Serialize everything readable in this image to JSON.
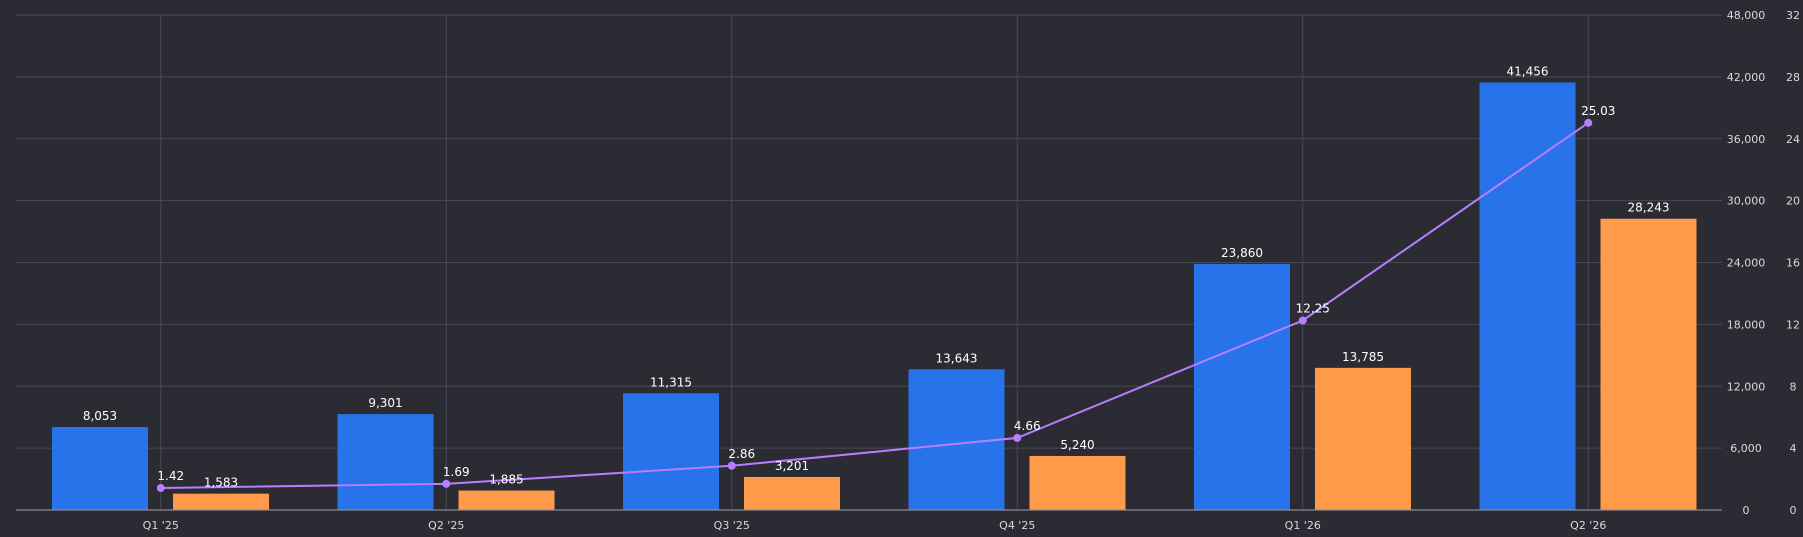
{
  "chart_data": {
    "type": "bar",
    "categories": [
      "Q1 '25",
      "Q2 '25",
      "Q3 '25",
      "Q4 '25",
      "Q1 '26",
      "Q2 '26"
    ],
    "series": [
      {
        "values": [
          8053,
          9301,
          11315,
          13643,
          23860,
          41456
        ],
        "color": "#2872ea",
        "kind": "bar",
        "axis": "right-outer"
      },
      {
        "values": [
          1583,
          1885,
          3201,
          5240,
          13785,
          28243
        ],
        "color": "#ff9a4a",
        "kind": "bar",
        "axis": "right-outer"
      },
      {
        "values": [
          1.42,
          1.69,
          2.86,
          4.66,
          12.25,
          25.03
        ],
        "color": "#b77fff",
        "kind": "line",
        "axis": "right-inner"
      }
    ],
    "bar_labels": [
      [
        "8,053",
        "9,301",
        "11,315",
        "13,643",
        "23,860",
        "41,456"
      ],
      [
        "1,583",
        "1,885",
        "3,201",
        "5,240",
        "13,785",
        "28,243"
      ]
    ],
    "line_labels": [
      "1.42",
      "1.69",
      "2.86",
      "4.66",
      "12.25",
      "25.03"
    ],
    "y_left_axis": {
      "ylim": [
        0,
        48000
      ],
      "ticks": [
        "0",
        "6,000",
        "12,000",
        "18,000",
        "24,000",
        "30,000",
        "36,000",
        "42,000",
        "48,000"
      ]
    },
    "y_right_axis": {
      "ylim": [
        0,
        32
      ],
      "ticks": [
        "0",
        "4",
        "8",
        "12",
        "16",
        "20",
        "24",
        "28",
        "32"
      ]
    },
    "grid": true,
    "legend": "none"
  }
}
